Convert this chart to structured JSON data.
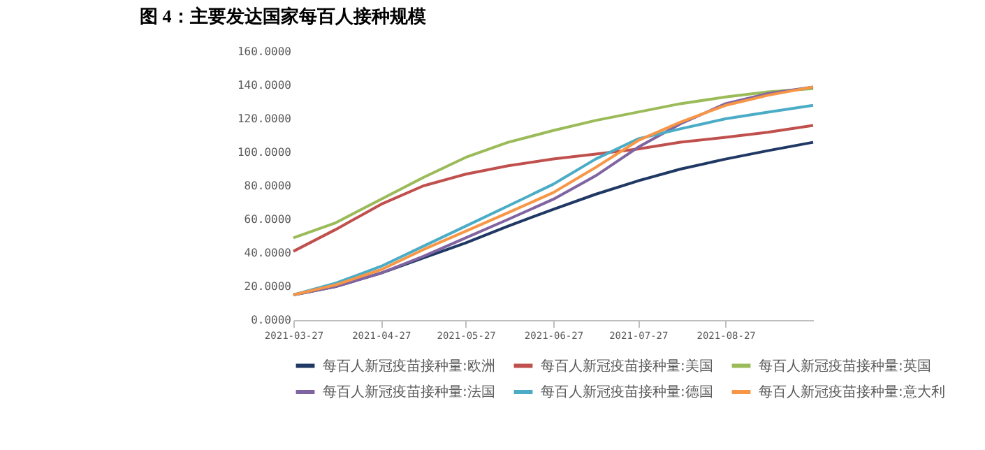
{
  "chart_data": {
    "type": "line",
    "title": "图 4：主要发达国家每百人接种规模",
    "x": [
      "2021-03-27",
      "2021-04-11",
      "2021-04-27",
      "2021-05-12",
      "2021-05-27",
      "2021-06-11",
      "2021-06-27",
      "2021-07-12",
      "2021-07-27",
      "2021-08-11",
      "2021-08-27",
      "2021-09-11",
      "2021-09-27"
    ],
    "series": [
      {
        "name": "每百人新冠疫苗接种量:欧洲",
        "color": "#203864",
        "values": [
          15,
          20,
          28,
          37,
          46,
          56,
          66,
          75,
          83,
          90,
          96,
          101,
          106
        ]
      },
      {
        "name": "每百人新冠疫苗接种量:美国",
        "color": "#c0504d",
        "values": [
          41,
          54,
          69,
          80,
          87,
          92,
          96,
          99,
          102,
          106,
          109,
          112,
          116
        ]
      },
      {
        "name": "每百人新冠疫苗接种量:英国",
        "color": "#9bbb59",
        "values": [
          49,
          58,
          72,
          85,
          97,
          106,
          113,
          119,
          124,
          129,
          133,
          136,
          138
        ]
      },
      {
        "name": "每百人新冠疫苗接种量:法国",
        "color": "#8064a2",
        "values": [
          15,
          20,
          28,
          38,
          49,
          60,
          72,
          86,
          103,
          117,
          129,
          135,
          139
        ]
      },
      {
        "name": "每百人新冠疫苗接种量:德国",
        "color": "#4bacc6",
        "values": [
          15,
          22,
          32,
          44,
          56,
          68,
          81,
          96,
          108,
          114,
          120,
          124,
          128
        ]
      },
      {
        "name": "每百人新冠疫苗接种量:意大利",
        "color": "#f79646",
        "values": [
          15,
          21,
          30,
          42,
          53,
          64,
          76,
          91,
          107,
          118,
          128,
          134,
          139
        ]
      }
    ],
    "xlim": [
      "2021-03-27",
      "2021-09-27"
    ],
    "xticks": [
      "2021-03-27",
      "2021-04-27",
      "2021-05-27",
      "2021-06-27",
      "2021-07-27",
      "2021-08-27"
    ],
    "ylim": [
      0,
      160
    ],
    "yticks": [
      {
        "value": 0,
        "label": "0.0000"
      },
      {
        "value": 20,
        "label": "20.0000"
      },
      {
        "value": 40,
        "label": "40.0000"
      },
      {
        "value": 60,
        "label": "60.0000"
      },
      {
        "value": 80,
        "label": "80.0000"
      },
      {
        "value": 100,
        "label": "100.0000"
      },
      {
        "value": 120,
        "label": "120.0000"
      },
      {
        "value": 140,
        "label": "140.0000"
      },
      {
        "value": 160,
        "label": "160.0000"
      }
    ],
    "legend": "bottom"
  }
}
